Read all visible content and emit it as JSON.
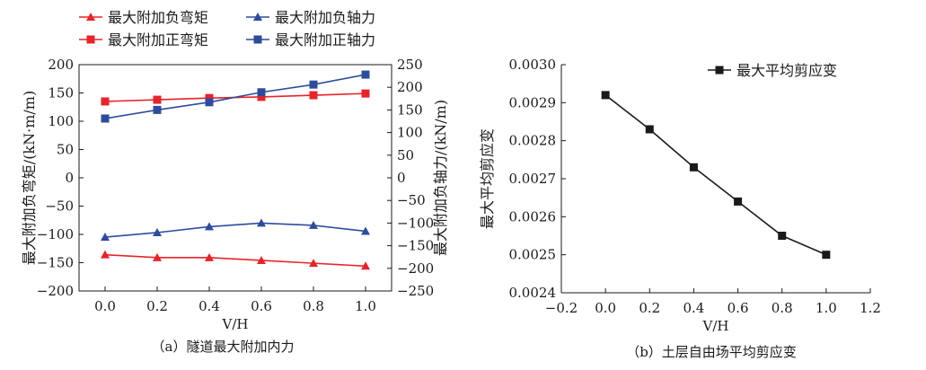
{
  "chart_data": [
    {
      "type": "line",
      "caption": "（a）隧道最大附加内力",
      "xlabel": "V/H",
      "ylabel": "最大附加负弯矩/(kN·m/m)",
      "y2label": "最大附加负轴力/(kN/m)",
      "xlim": [
        -0.1,
        1.1
      ],
      "ylim": [
        -200,
        200
      ],
      "y2lim": [
        -250,
        250
      ],
      "xticks": [
        0.0,
        0.2,
        0.4,
        0.6,
        0.8,
        1.0
      ],
      "yticks": [
        -200,
        -150,
        -100,
        -50,
        0,
        50,
        100,
        150,
        200
      ],
      "y2ticks": [
        -250,
        -200,
        -150,
        -100,
        -50,
        0,
        50,
        100,
        150,
        200,
        250
      ],
      "grid": false,
      "legend_position": "top",
      "x": [
        0.0,
        0.2,
        0.4,
        0.6,
        0.8,
        1.0
      ],
      "series": [
        {
          "name": "最大附加负弯矩",
          "axis": "left",
          "color": "#e8232a",
          "marker": "triangle",
          "values": [
            -136,
            -141,
            -141,
            -146,
            -151,
            -156
          ]
        },
        {
          "name": "最大附加负轴力",
          "axis": "right",
          "color": "#2e4c9c",
          "marker": "triangle",
          "values": [
            -131,
            -121,
            -108,
            -100,
            -105,
            -118
          ]
        },
        {
          "name": "最大附加正弯矩",
          "axis": "left",
          "color": "#e8232a",
          "marker": "square",
          "values": [
            135,
            138,
            141,
            143,
            146,
            149
          ]
        },
        {
          "name": "最大附加正轴力",
          "axis": "right",
          "color": "#2e4c9c",
          "marker": "square",
          "values": [
            131,
            150,
            167,
            189,
            206,
            228
          ]
        }
      ]
    },
    {
      "type": "line",
      "caption": "（b）土层自由场平均剪应变",
      "xlabel": "V/H",
      "ylabel": "最大平均剪应变",
      "xlim": [
        -0.2,
        1.2
      ],
      "ylim": [
        0.0024,
        0.003
      ],
      "xticks": [
        -0.2,
        0.0,
        0.2,
        0.4,
        0.6,
        0.8,
        1.0,
        1.2
      ],
      "yticks": [
        0.0024,
        0.0025,
        0.0026,
        0.0027,
        0.0028,
        0.0029,
        0.003
      ],
      "grid": false,
      "legend_position": "top-right",
      "x": [
        0.0,
        0.2,
        0.4,
        0.6,
        0.8,
        1.0
      ],
      "series": [
        {
          "name": "最大平均剪应变",
          "color": "#1a1a1a",
          "marker": "square",
          "values": [
            0.00292,
            0.00283,
            0.00273,
            0.00264,
            0.00255,
            0.0025
          ]
        }
      ]
    }
  ]
}
